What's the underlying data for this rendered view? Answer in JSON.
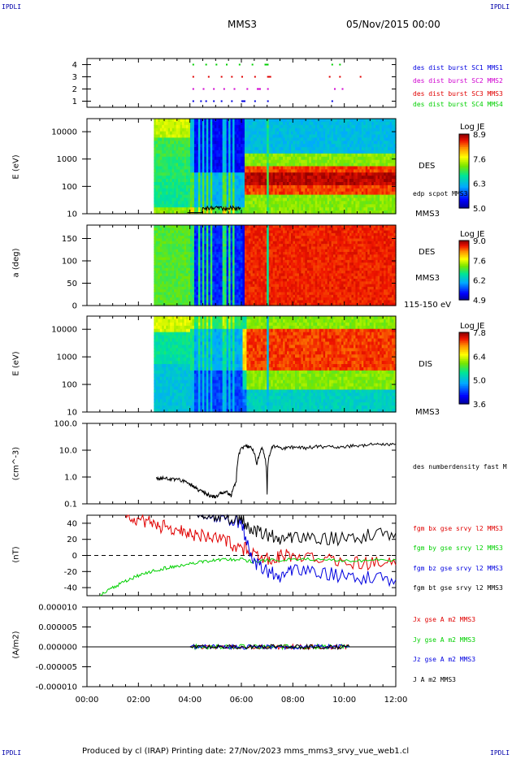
{
  "corners": {
    "tl": "IPDLI",
    "tr": "IPDLI",
    "bl": "IPDLI",
    "br": "IPDLI"
  },
  "header": {
    "spacecraft": "MMS3",
    "date": "05/Nov/2015 00:00"
  },
  "footer": {
    "text": "Produced by cl (IRAP)   Printing date: 27/Nov/2023   mms_mms3_srvy_vue_web1.cl"
  },
  "colors": {
    "red": "#e00000",
    "green": "#00d000",
    "blue": "#0000e0",
    "magenta": "#d000d0",
    "black": "#000000"
  },
  "chart_data": [
    {
      "type": "scatter",
      "id": "burst",
      "title": "",
      "yticks": [
        "4",
        "3",
        "2",
        "1"
      ],
      "ylim": [
        0.5,
        4.5
      ],
      "series": [
        {
          "name": "des dist burst SC1 MMS1",
          "color": "#0000e0",
          "y": 1,
          "x": [
            4.1,
            4.4,
            4.6,
            4.9,
            5.2,
            5.6,
            6.0,
            6.5,
            7.0,
            9.5
          ]
        },
        {
          "name": "des dist burst SC2 MMS2",
          "color": "#d000d0",
          "y": 2,
          "x": [
            4.1,
            4.5,
            4.9,
            5.3,
            5.7,
            6.2,
            6.6,
            7.0,
            9.6,
            9.9
          ]
        },
        {
          "name": "des dist burst SC3 MMS3",
          "color": "#e00000",
          "y": 3,
          "x": [
            4.1,
            4.7,
            5.2,
            5.6,
            6.0,
            6.5,
            7.0,
            9.4,
            9.8,
            10.6
          ]
        },
        {
          "name": "des dist burst SC4 MMS4",
          "color": "#00d000",
          "y": 4,
          "x": [
            4.1,
            4.6,
            5.0,
            5.4,
            5.9,
            6.4,
            6.9,
            9.5,
            9.8
          ]
        }
      ]
    },
    {
      "type": "heatmap",
      "id": "des_energy",
      "ylabel": "E (eV)",
      "yticks": [
        "10000",
        "1000",
        "100",
        "10"
      ],
      "right_label": "DES",
      "right_label2": "edp scpot MMS3",
      "right_label3": "MMS3",
      "colorbar": {
        "title": "Log JE",
        "ticks": [
          "8.9",
          "7.6",
          "6.3",
          "5.0"
        ]
      }
    },
    {
      "type": "heatmap",
      "id": "des_pitch",
      "ylabel": "a (deg)",
      "yticks": [
        "150",
        "100",
        "50",
        "0"
      ],
      "right_label": "DES",
      "right_label2": "MMS3",
      "right_label3": "115-150 eV",
      "colorbar": {
        "title": "Log JE",
        "ticks": [
          "9.0",
          "7.6",
          "6.2",
          "4.9"
        ]
      }
    },
    {
      "type": "heatmap",
      "id": "dis_energy",
      "ylabel": "E (eV)",
      "yticks": [
        "10000",
        "1000",
        "100",
        "10"
      ],
      "right_label": "DIS",
      "right_label2": "MMS3",
      "colorbar": {
        "title": "Log JE",
        "ticks": [
          "7.8",
          "6.4",
          "5.0",
          "3.6"
        ]
      }
    },
    {
      "type": "line",
      "id": "density",
      "ylabel": "(cm^-3)",
      "yscale": "log",
      "yticks": [
        "100.0",
        "10.0",
        "1.0",
        "0.1"
      ],
      "ylim": [
        0.1,
        100
      ],
      "series": [
        {
          "name": "des numberdensity fast M",
          "color": "#000000",
          "x": [
            2.7,
            3.0,
            3.3,
            3.6,
            3.9,
            4.1,
            4.2,
            4.4,
            4.6,
            4.8,
            5.0,
            5.2,
            5.4,
            5.6,
            5.8,
            6.0,
            6.2,
            6.4,
            6.6,
            6.8,
            7.0,
            7.2,
            7.6,
            8.0,
            8.5,
            9.0,
            9.5,
            10.0,
            10.5,
            11.0,
            11.5,
            12.0
          ],
          "y": [
            0.9,
            0.9,
            0.8,
            0.8,
            0.6,
            0.5,
            0.4,
            0.3,
            0.25,
            0.2,
            0.18,
            0.25,
            0.3,
            0.2,
            0.6,
            12,
            14,
            13,
            2.5,
            12,
            0.2,
            14,
            12,
            13,
            12,
            14,
            13,
            14,
            15,
            16,
            17,
            17
          ]
        }
      ]
    },
    {
      "type": "line",
      "id": "magnetic",
      "ylabel": "(nT)",
      "yticks": [
        "40",
        "20",
        "0",
        "-20",
        "-40"
      ],
      "ylim": [
        -50,
        50
      ],
      "series": [
        {
          "name": "fgm bx gse srvy l2 MMS3",
          "color": "#e00000",
          "x": [
            1.5,
            2.0,
            2.5,
            3.0,
            3.5,
            4.0,
            4.5,
            5.0,
            5.5,
            6.0,
            6.5,
            7.0,
            7.5,
            8.0,
            9.0,
            10.0,
            11.0,
            12.0
          ],
          "y": [
            50,
            45,
            40,
            35,
            30,
            27,
            24,
            20,
            15,
            10,
            5,
            -5,
            0,
            -2,
            -5,
            -8,
            -10,
            -12
          ]
        },
        {
          "name": "fgm by gse srvy l2 MMS3",
          "color": "#00d000",
          "x": [
            0.5,
            1.0,
            1.5,
            2.0,
            2.5,
            3.0,
            3.5,
            4.0,
            4.5,
            5.0,
            5.5,
            6.0,
            6.5,
            7.0,
            8.0,
            9.0,
            10.0,
            11.0,
            12.0
          ],
          "y": [
            -50,
            -40,
            -32,
            -25,
            -20,
            -16,
            -13,
            -10,
            -8,
            -6,
            -5,
            -5,
            -8,
            -6,
            -5,
            -5,
            -7,
            -6,
            -5
          ]
        },
        {
          "name": "fgm bz gse srvy l2 MMS3",
          "color": "#0000e0",
          "x": [
            4.0,
            4.5,
            5.0,
            5.5,
            6.0,
            6.5,
            7.0,
            7.5,
            8.0,
            9.0,
            10.0,
            11.0,
            12.0
          ],
          "y": [
            50,
            50,
            48,
            46,
            40,
            -10,
            -20,
            -25,
            -20,
            -22,
            -25,
            -28,
            -30
          ]
        },
        {
          "name": "fgm bt gse srvy l2 MMS3",
          "color": "#000000",
          "x": [
            4.0,
            4.5,
            5.0,
            5.5,
            6.0,
            6.5,
            7.0,
            7.5,
            8.0,
            9.0,
            10.0,
            11.0,
            12.0
          ],
          "y": [
            50,
            50,
            49,
            47,
            45,
            30,
            25,
            22,
            20,
            20,
            22,
            25,
            28
          ]
        }
      ]
    },
    {
      "type": "line",
      "id": "current",
      "ylabel": "(A/m2)",
      "yticks": [
        "0.000010",
        "0.000005",
        "0.000000",
        "-0.000005",
        "-0.000010"
      ],
      "ylim": [
        -1e-05,
        1e-05
      ],
      "xticks": [
        "00:00",
        "02:00",
        "04:00",
        "06:00",
        "08:00",
        "10:00",
        "12:00"
      ],
      "series": [
        {
          "name": "Jx gse A m2 MMS3",
          "color": "#e00000"
        },
        {
          "name": "Jy gse A m2 MMS3",
          "color": "#00d000"
        },
        {
          "name": "Jz gse A m2 MMS3",
          "color": "#0000e0"
        },
        {
          "name": "J A m2 MMS3",
          "color": "#000000"
        }
      ]
    }
  ]
}
